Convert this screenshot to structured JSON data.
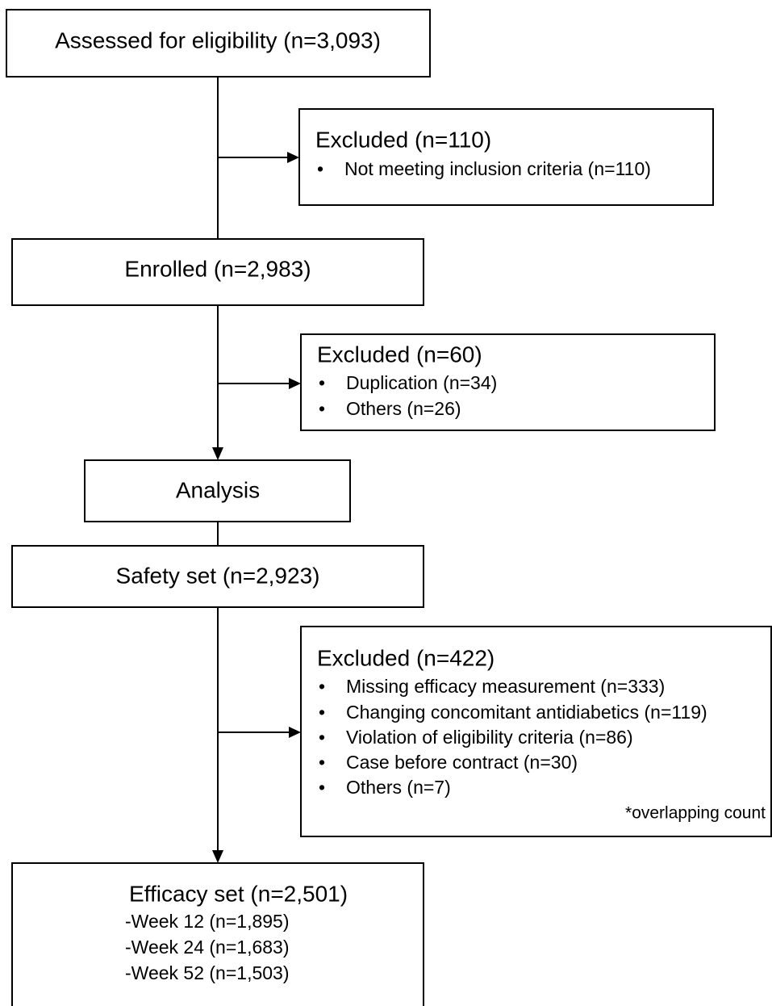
{
  "nodes": [
    {
      "title": "Assessed for eligibility (n=3,093)"
    },
    {
      "title": "Excluded (n=110)",
      "items": [
        "Not meeting inclusion criteria (n=110)"
      ]
    },
    {
      "title": "Enrolled (n=2,983)"
    },
    {
      "title": "Excluded (n=60)",
      "items": [
        "Duplication (n=34)",
        "Others (n=26)"
      ]
    },
    {
      "title": "Analysis"
    },
    {
      "title": "Safety set (n=2,923)"
    },
    {
      "title": "Excluded (n=422)",
      "items": [
        "Missing efficacy measurement (n=333)",
        "Changing concomitant antidiabetics (n=119)",
        "Violation of eligibility criteria (n=86)",
        "Case before contract (n=30)",
        "Others (n=7)"
      ],
      "note": "*overlapping count"
    },
    {
      "title": "Efficacy set (n=2,501)",
      "items": [
        "-Week 12 (n=1,895)",
        "-Week 24 (n=1,683)",
        "-Week 52 (n=1,503)"
      ]
    }
  ]
}
